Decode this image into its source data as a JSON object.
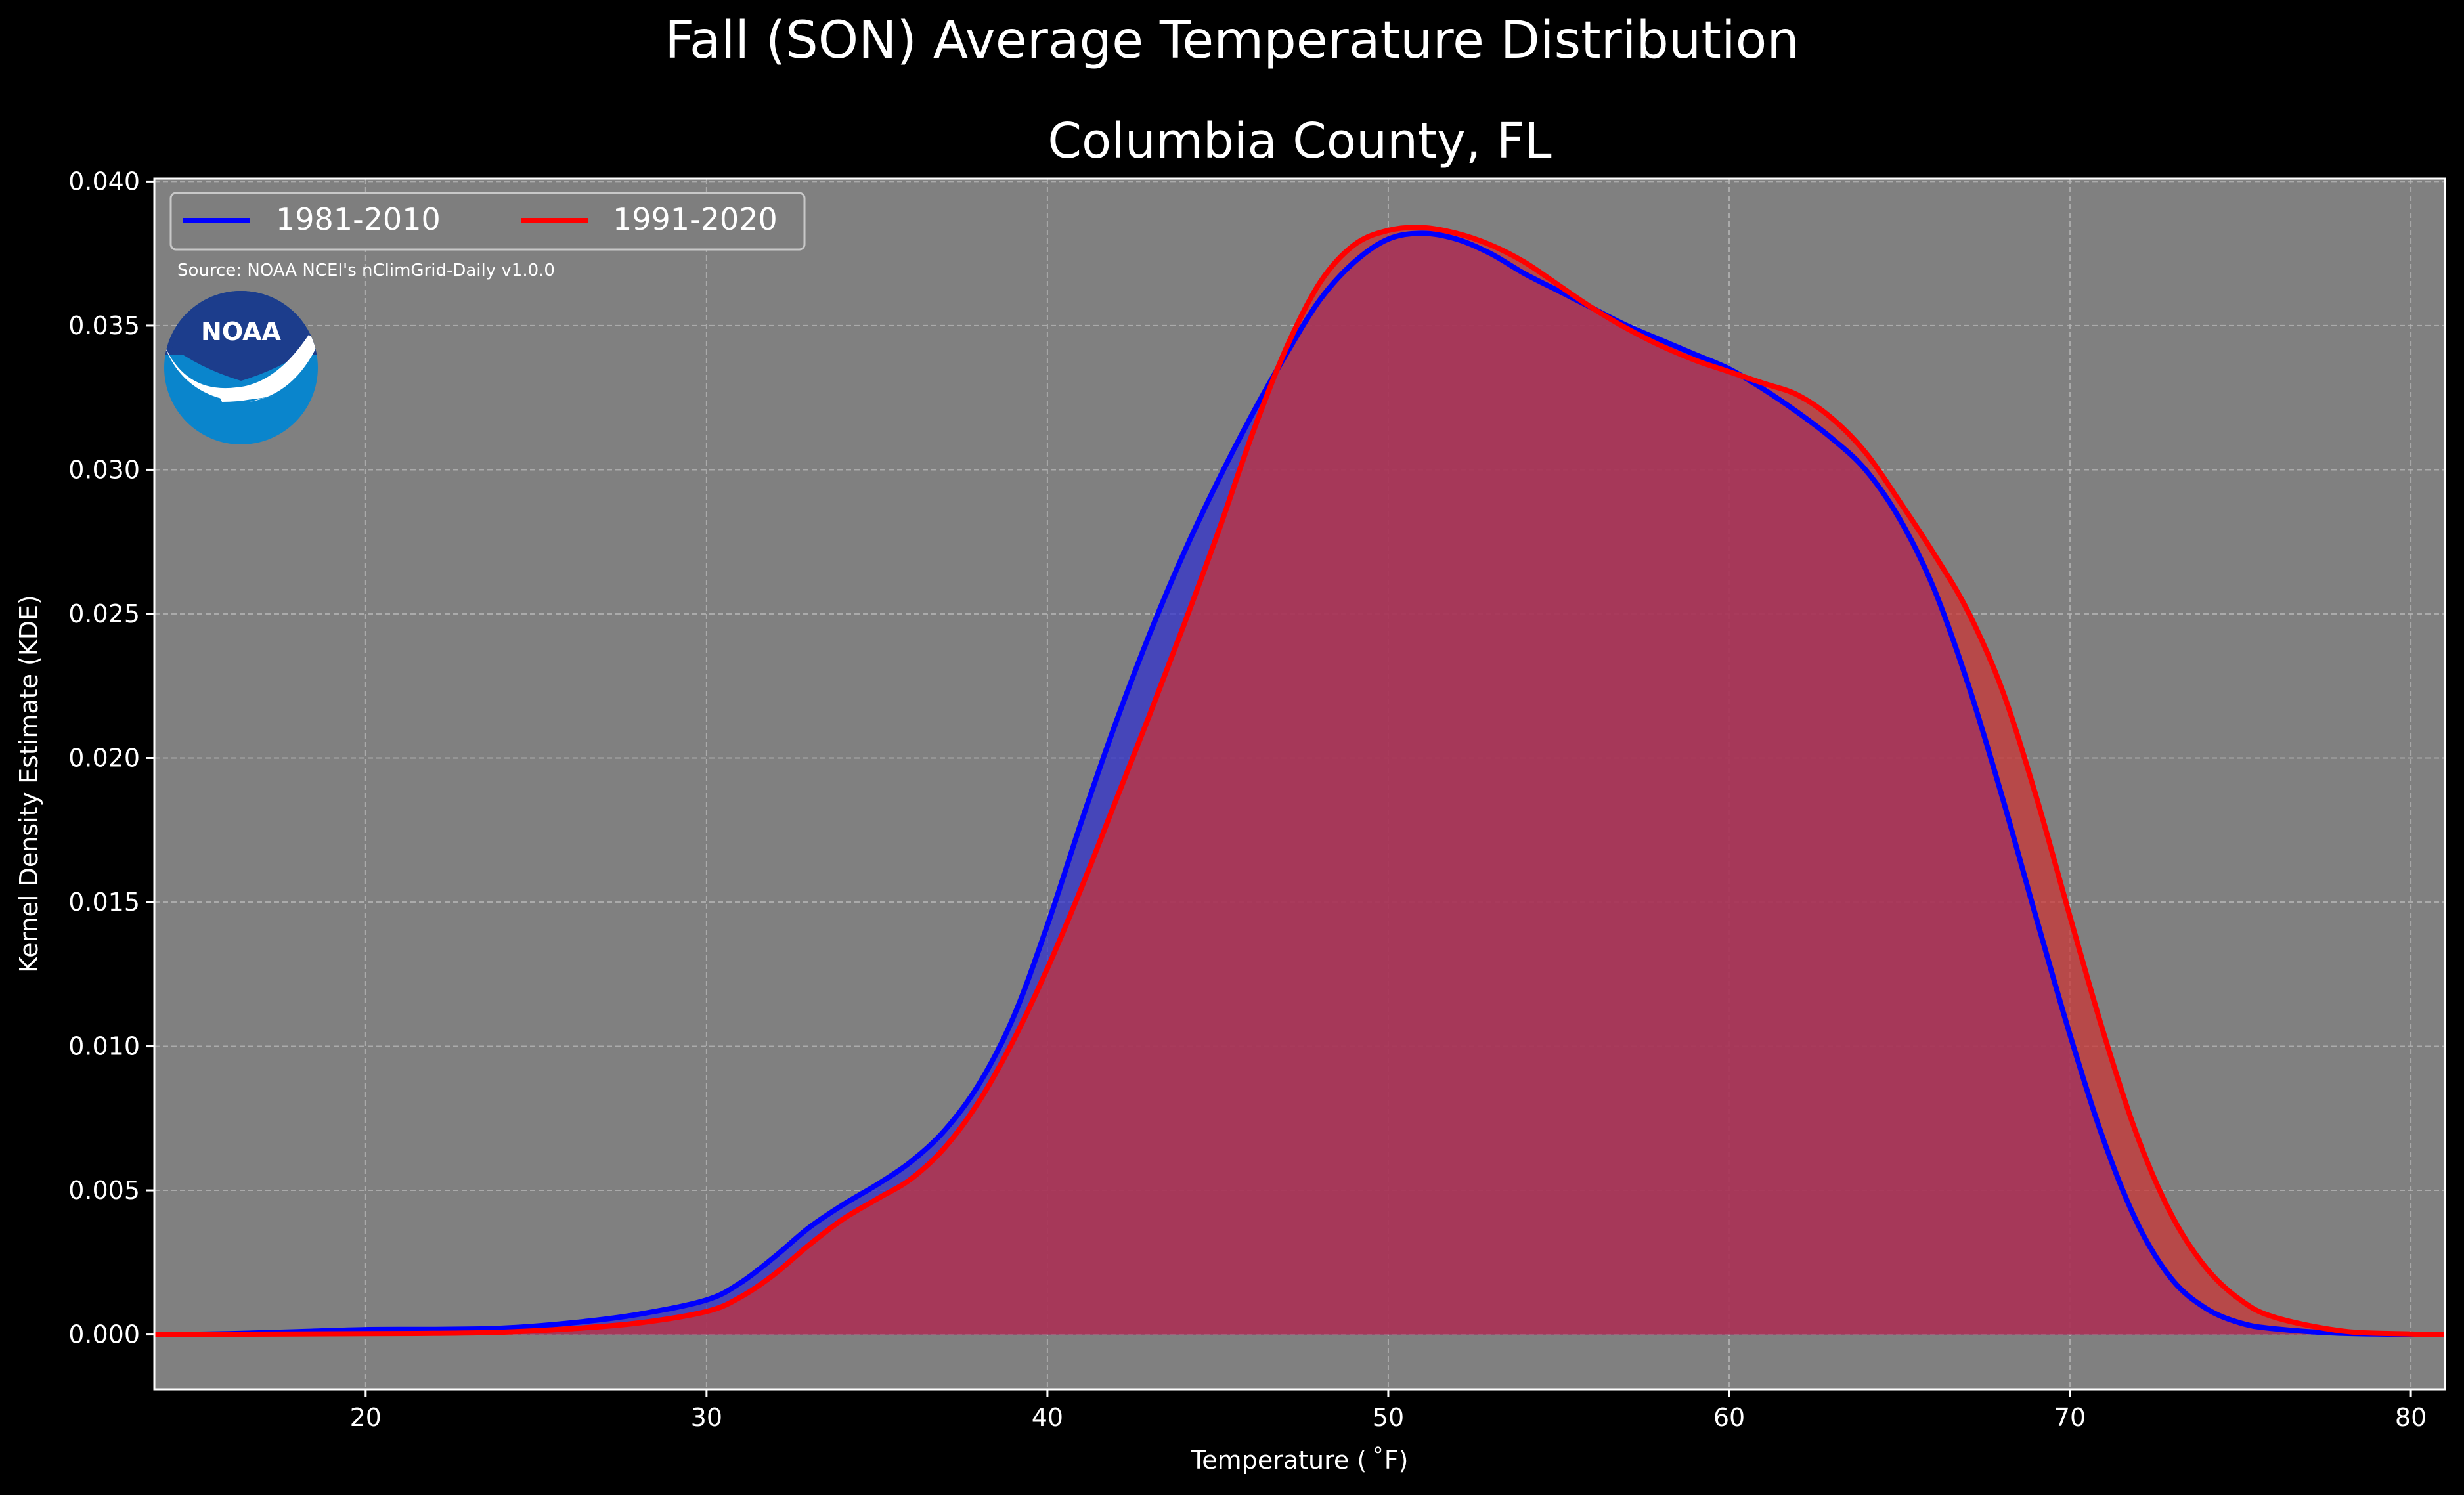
{
  "figure": {
    "suptitle": "Fall (SON) Average Temperature Distribution",
    "title": "Columbia County, FL",
    "source_note": "Source: NOAA NCEI's nClimGrid-Daily v1.0.0",
    "logo_text": "NOAA",
    "colors": {
      "background": "#000000",
      "axes_face": "#808080",
      "grid": "#b0b0b0",
      "text": "#ffffff",
      "logo_dark_blue": "#1c3d8c",
      "logo_light_blue": "#0a85cc"
    }
  },
  "chart_data": {
    "type": "area",
    "xlabel": "Temperature ($^\\circ$F)",
    "xlabel_display": "Temperature ( ˚F)",
    "ylabel": "Kernel Density Estimate (KDE)",
    "xlim": [
      13.8,
      81
    ],
    "ylim": [
      -0.0019,
      0.0401
    ],
    "xticks": [
      20,
      30,
      40,
      50,
      60,
      70,
      80
    ],
    "xtick_labels": [
      "20",
      "30",
      "40",
      "50",
      "60",
      "70",
      "80"
    ],
    "yticks": [
      0.0,
      0.005,
      0.01,
      0.015,
      0.02,
      0.025,
      0.03,
      0.035,
      0.04
    ],
    "ytick_labels": [
      "0.000",
      "0.005",
      "0.010",
      "0.015",
      "0.020",
      "0.025",
      "0.030",
      "0.035",
      "0.040"
    ],
    "grid": true,
    "legend_position": "top-left",
    "series": [
      {
        "name": "1981-2010",
        "color": "#0000ff",
        "fill": "#3333cc",
        "points": [
          [
            13.8,
            0
          ],
          [
            16,
            3e-05
          ],
          [
            18,
            0.0001
          ],
          [
            20,
            0.00017
          ],
          [
            22,
            0.00018
          ],
          [
            24,
            0.00022
          ],
          [
            26,
            0.0004
          ],
          [
            28,
            0.0007
          ],
          [
            30,
            0.0012
          ],
          [
            31,
            0.0018
          ],
          [
            32,
            0.0027
          ],
          [
            33,
            0.0037
          ],
          [
            34,
            0.0045
          ],
          [
            35,
            0.0052
          ],
          [
            36,
            0.006
          ],
          [
            37,
            0.0071
          ],
          [
            38,
            0.0087
          ],
          [
            39,
            0.011
          ],
          [
            40,
            0.0142
          ],
          [
            41,
            0.0178
          ],
          [
            42,
            0.0212
          ],
          [
            43,
            0.0243
          ],
          [
            44,
            0.0271
          ],
          [
            45,
            0.0296
          ],
          [
            46,
            0.0319
          ],
          [
            47,
            0.034
          ],
          [
            48,
            0.0359
          ],
          [
            49,
            0.0372
          ],
          [
            50,
            0.038
          ],
          [
            51,
            0.0382
          ],
          [
            52,
            0.038
          ],
          [
            53,
            0.0375
          ],
          [
            54,
            0.0368
          ],
          [
            55,
            0.0362
          ],
          [
            56,
            0.0356
          ],
          [
            57,
            0.035
          ],
          [
            58,
            0.0345
          ],
          [
            59,
            0.034
          ],
          [
            60,
            0.0335
          ],
          [
            61,
            0.0328
          ],
          [
            62,
            0.032
          ],
          [
            63,
            0.0311
          ],
          [
            64,
            0.03
          ],
          [
            65,
            0.0283
          ],
          [
            66,
            0.0259
          ],
          [
            67,
            0.0226
          ],
          [
            68,
            0.0187
          ],
          [
            69,
            0.0145
          ],
          [
            70,
            0.0104
          ],
          [
            71,
            0.0067
          ],
          [
            72,
            0.0038
          ],
          [
            73,
            0.0019
          ],
          [
            74,
            0.0009
          ],
          [
            75,
            0.0004
          ],
          [
            76,
            0.0002
          ],
          [
            78,
            4e-05
          ],
          [
            81,
            0
          ]
        ]
      },
      {
        "name": "1991-2020",
        "color": "#ff0000",
        "fill": "#cc3333",
        "points": [
          [
            13.8,
            0
          ],
          [
            16,
            1e-05
          ],
          [
            18,
            2e-05
          ],
          [
            20,
            3e-05
          ],
          [
            22,
            4e-05
          ],
          [
            24,
            8e-05
          ],
          [
            26,
            0.0002
          ],
          [
            28,
            0.0004
          ],
          [
            30,
            0.0008
          ],
          [
            31,
            0.0013
          ],
          [
            32,
            0.0021
          ],
          [
            33,
            0.0031
          ],
          [
            34,
            0.004
          ],
          [
            35,
            0.0047
          ],
          [
            36,
            0.0054
          ],
          [
            37,
            0.0065
          ],
          [
            38,
            0.0081
          ],
          [
            39,
            0.0102
          ],
          [
            40,
            0.0127
          ],
          [
            41,
            0.0155
          ],
          [
            42,
            0.0185
          ],
          [
            43,
            0.0215
          ],
          [
            44,
            0.0246
          ],
          [
            45,
            0.0278
          ],
          [
            46,
            0.0312
          ],
          [
            47,
            0.0342
          ],
          [
            48,
            0.0365
          ],
          [
            49,
            0.0378
          ],
          [
            50,
            0.0383
          ],
          [
            51,
            0.0384
          ],
          [
            52,
            0.0382
          ],
          [
            53,
            0.0378
          ],
          [
            54,
            0.0372
          ],
          [
            55,
            0.0364
          ],
          [
            56,
            0.0356
          ],
          [
            57,
            0.0349
          ],
          [
            58,
            0.0343
          ],
          [
            59,
            0.0338
          ],
          [
            60,
            0.0334
          ],
          [
            61,
            0.033
          ],
          [
            62,
            0.0326
          ],
          [
            63,
            0.0318
          ],
          [
            64,
            0.0306
          ],
          [
            65,
            0.0289
          ],
          [
            66,
            0.0271
          ],
          [
            67,
            0.0251
          ],
          [
            68,
            0.0224
          ],
          [
            69,
            0.0187
          ],
          [
            70,
            0.0145
          ],
          [
            71,
            0.0104
          ],
          [
            72,
            0.0068
          ],
          [
            73,
            0.0041
          ],
          [
            74,
            0.0023
          ],
          [
            75,
            0.0012
          ],
          [
            76,
            0.0006
          ],
          [
            78,
            0.00012
          ],
          [
            80,
            2e-05
          ],
          [
            81,
            0
          ]
        ]
      }
    ]
  }
}
